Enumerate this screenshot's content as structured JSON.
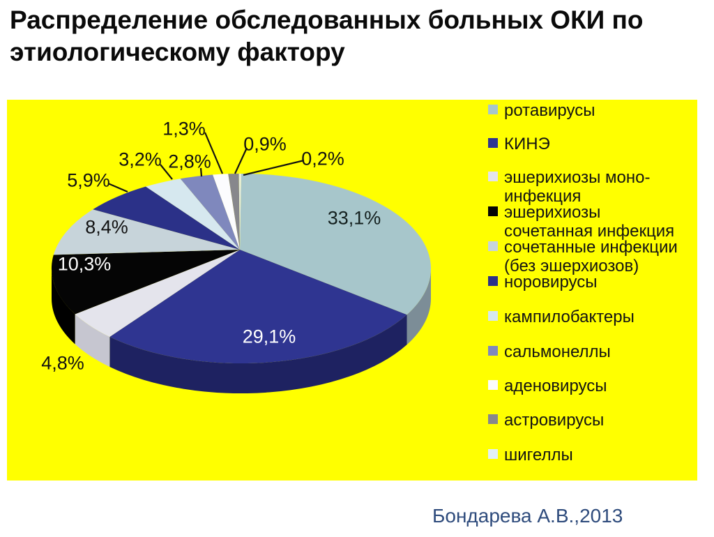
{
  "title": "Распределение обследованных больных ОКИ по\nэтиологическому фактору",
  "attribution": "Бондарева А.В.,2013",
  "colors": {
    "page_background": "#FFFFFF",
    "panel_background": "#FFFF00",
    "title_text": "#0A0A0A",
    "legend_text": "#131313",
    "attribution_text": "#2E4B7C",
    "leader_line": "#111111"
  },
  "chart_data": {
    "type": "pie",
    "style": "3d",
    "title": "Распределение обследованных больных ОКИ по этиологическому фактору",
    "legend_position": "right",
    "start_angle_deg": 0,
    "direction": "clockwise",
    "series": [
      {
        "key": "rotavirusy",
        "legend_label": "ротавирусы",
        "value_pct": 33.1,
        "value_label": "33,1%",
        "color": "#A7C6CB",
        "side_color": "#7C8D97",
        "label_color": "#14201f"
      },
      {
        "key": "kine",
        "legend_label": "КИНЭ",
        "value_pct": 29.1,
        "value_label": "29,1%",
        "color": "#2F3591",
        "side_color": "#1E2261",
        "label_color": "#FFFFFF"
      },
      {
        "key": "escherichiosis-mono",
        "legend_label": "эшерихиозы моно-\nинфекция",
        "value_pct": 4.8,
        "value_label": "4,8%",
        "color": "#E4E4EC",
        "side_color": "#C6C6D0",
        "label_color": "#111111"
      },
      {
        "key": "escherichiosis-mixed",
        "legend_label": "эшерихиозы\nсочетанная инфекция",
        "value_pct": 10.3,
        "value_label": "10,3%",
        "color": "#050505",
        "side_color": "#000000",
        "label_color": "#FFFFFF"
      },
      {
        "key": "mixed-no-escherichiosis",
        "legend_label": "сочетанные инфекции\n(без эшерхиозов)",
        "value_pct": 8.4,
        "value_label": "8,4%",
        "color": "#C7D4DA",
        "side_color": "#9AA8B0",
        "label_color": "#111111"
      },
      {
        "key": "norovirusy",
        "legend_label": "норовирусы",
        "value_pct": 5.9,
        "value_label": "5,9%",
        "color": "#2B3188",
        "side_color": "#1D2158",
        "label_color": "#111111"
      },
      {
        "key": "campylobactery",
        "legend_label": "кампилобактеры",
        "value_pct": 3.2,
        "value_label": "3,2%",
        "color": "#D6E8EF",
        "side_color": "#AFC2C9",
        "label_color": "#111111"
      },
      {
        "key": "salmonelly",
        "legend_label": "сальмонеллы",
        "value_pct": 2.8,
        "value_label": "2,8%",
        "color": "#7F88BD",
        "side_color": "#5A6291",
        "label_color": "#111111"
      },
      {
        "key": "adenovirusy",
        "legend_label": "аденовирусы",
        "value_pct": 1.3,
        "value_label": "1,3%",
        "color": "#FCFCFE",
        "side_color": "#D8D8DE",
        "label_color": "#111111"
      },
      {
        "key": "astrovirusy",
        "legend_label": "астровирусы",
        "value_pct": 0.9,
        "value_label": "0,9%",
        "color": "#87878C",
        "side_color": "#606065",
        "label_color": "#111111"
      },
      {
        "key": "shigelly",
        "legend_label": "шигеллы",
        "value_pct": 0.2,
        "value_label": "0,2%",
        "color": "#E7EEDC",
        "side_color": "#C2C8B4",
        "label_color": "#111111",
        "legend_color": "#E3F0F7"
      }
    ]
  }
}
